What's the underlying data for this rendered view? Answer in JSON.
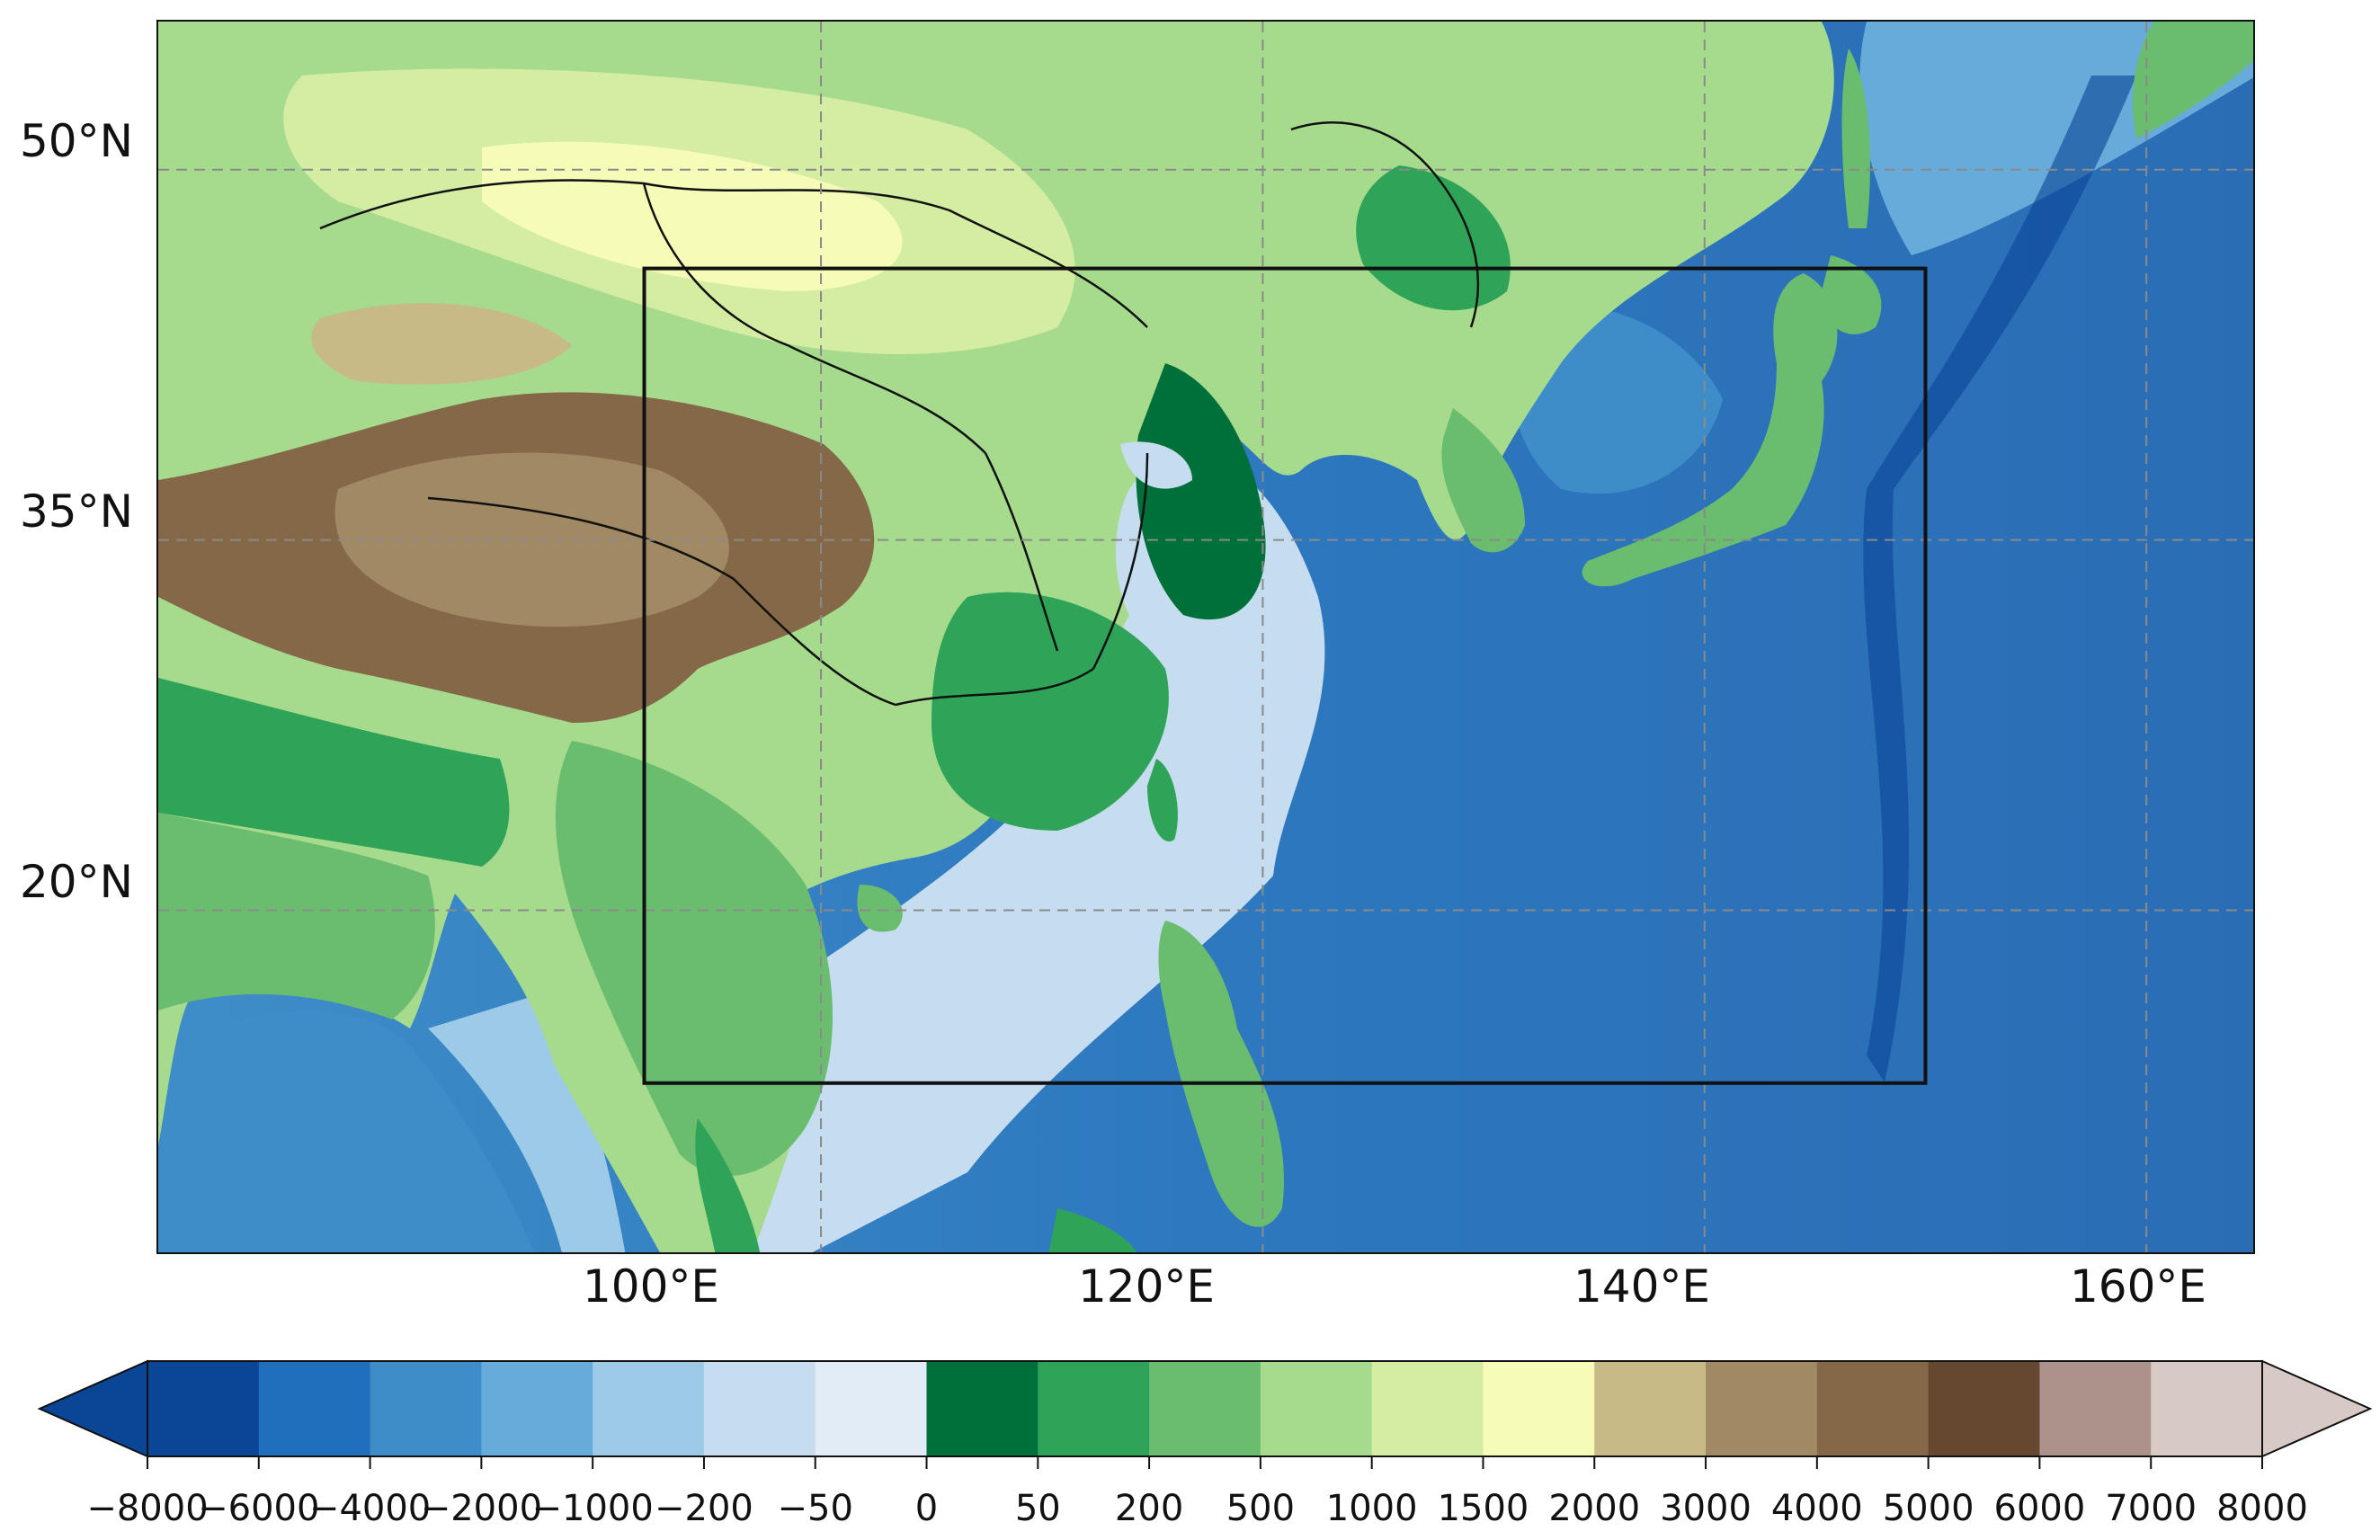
{
  "map": {
    "lon_range": [
      70,
      165
    ],
    "lat_range": [
      6,
      56
    ],
    "gridlines": "dashed",
    "lat_labels": [
      "50°N",
      "35°N",
      "20°N"
    ],
    "lat_values": [
      50,
      35,
      20
    ],
    "lon_labels": [
      "100°E",
      "120°E",
      "140°E",
      "160°E"
    ],
    "lon_values": [
      100,
      120,
      140,
      160
    ],
    "inner_box": {
      "lon": [
        92,
        150
      ],
      "lat": [
        13,
        46
      ]
    },
    "ocean_color": "#2a6db5",
    "land_color": "#9fd78f",
    "plateau_color": "#8a6a48",
    "border_color": "#111111"
  },
  "colorbar": {
    "type": "elevation",
    "extend": "both",
    "tick_labels": [
      "−8000",
      "−6000",
      "−4000",
      "−2000",
      "−1000",
      "−200",
      "−50",
      "0",
      "50",
      "200",
      "500",
      "1000",
      "1500",
      "2000",
      "3000",
      "4000",
      "5000",
      "6000",
      "7000",
      "8000"
    ],
    "colors": [
      "#0a4596",
      "#1f6fbc",
      "#3f8dc8",
      "#66abd9",
      "#9dcbe7",
      "#c6dcef",
      "#e2ecf6",
      "#00703a",
      "#2fa458",
      "#6abd6e",
      "#a6db8e",
      "#d5eda3",
      "#f6fbb8",
      "#c7ba87",
      "#a18963",
      "#856848",
      "#664831",
      "#ab938c",
      "#d7c9c4"
    ],
    "under_color": "#0a4596",
    "over_color": "#d7c9c4"
  }
}
